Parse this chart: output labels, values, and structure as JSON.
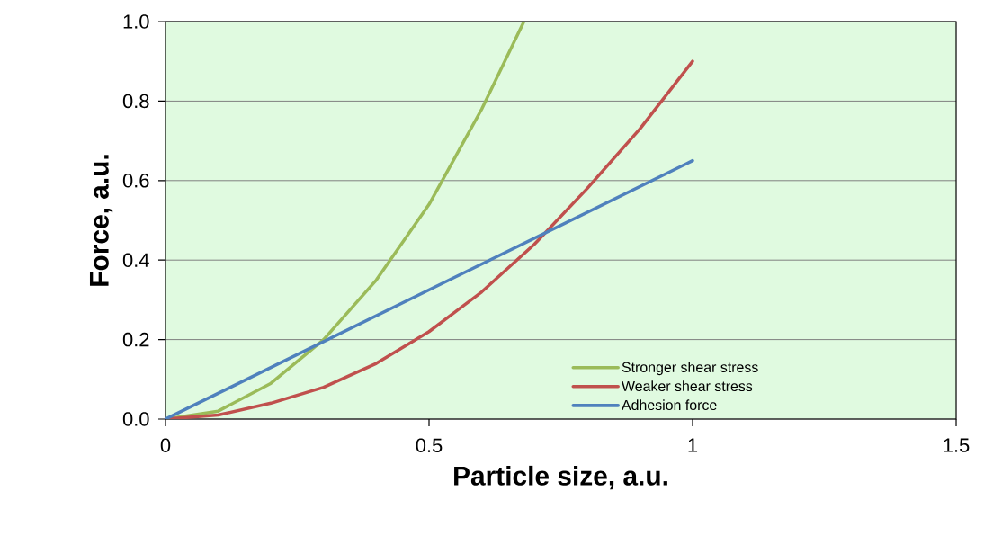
{
  "chart_data": {
    "type": "line",
    "xlabel": "Particle size, a.u.",
    "ylabel": "Force, a.u.",
    "xlim": [
      0,
      1.5
    ],
    "ylim": [
      0,
      1.0
    ],
    "xticks": [
      0,
      0.5,
      1,
      1.5
    ],
    "yticks": [
      {
        "value": 0,
        "label": "0.0"
      },
      {
        "value": 0.2,
        "label": "0.2"
      },
      {
        "value": 0.4,
        "label": "0.4"
      },
      {
        "value": 0.6,
        "label": "0.6"
      },
      {
        "value": 0.8,
        "label": "0.8"
      },
      {
        "value": 1.0,
        "label": "1.0"
      }
    ],
    "grid": "y",
    "legend": "bottom right",
    "marker": "none",
    "line_style": "solid",
    "series": [
      {
        "name": "Stronger shear stress",
        "color": "#9bbb59",
        "x": [
          0,
          0.1,
          0.2,
          0.3,
          0.4,
          0.5,
          0.6,
          0.68
        ],
        "values": [
          0,
          0.02,
          0.09,
          0.2,
          0.35,
          0.54,
          0.78,
          1.0
        ]
      },
      {
        "name": "Weaker shear stress",
        "color": "#c0504d",
        "x": [
          0,
          0.1,
          0.2,
          0.3,
          0.4,
          0.5,
          0.6,
          0.7,
          0.8,
          0.9,
          1.0
        ],
        "values": [
          0,
          0.01,
          0.04,
          0.08,
          0.14,
          0.22,
          0.32,
          0.44,
          0.58,
          0.73,
          0.9
        ]
      },
      {
        "name": "Adhesion force",
        "color": "#4f81bd",
        "x": [
          0,
          0.5,
          1.0
        ],
        "values": [
          0,
          0.325,
          0.65
        ]
      }
    ]
  }
}
